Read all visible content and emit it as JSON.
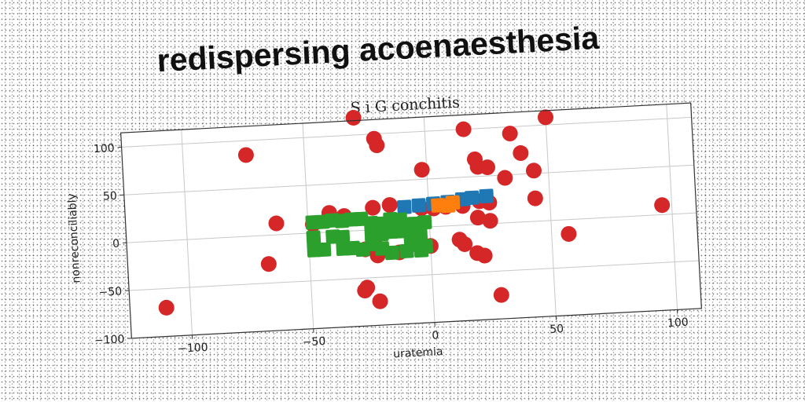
{
  "page_title": "redispersing acoenaesthesia",
  "chart_data": {
    "type": "scatter",
    "title": "S i G conchitis",
    "xlabel": "uratemia",
    "ylabel": "nonreconciliably",
    "xlim": [
      -125,
      110
    ],
    "ylim": [
      -100,
      115
    ],
    "xticks": [
      -100,
      -50,
      0,
      50,
      100
    ],
    "yticks": [
      -100,
      -50,
      0,
      50,
      100
    ],
    "xtick_labels": [
      "−100",
      "−50",
      "0",
      "50",
      "100"
    ],
    "ytick_labels": [
      "−100",
      "−50",
      "0",
      "50",
      "100"
    ],
    "grid": true,
    "series": [
      {
        "color": "#d62728",
        "points": [
          [
            -29,
            118
          ],
          [
            -21,
            95
          ],
          [
            -20,
            88
          ],
          [
            16,
            100
          ],
          [
            35,
            93
          ],
          [
            50,
            108
          ],
          [
            -74,
            85
          ],
          [
            39,
            72
          ],
          [
            20,
            68
          ],
          [
            21,
            60
          ],
          [
            25,
            59
          ],
          [
            -2,
            60
          ],
          [
            32,
            47
          ],
          [
            44,
            53
          ],
          [
            -110,
            -70
          ],
          [
            -63,
            12
          ],
          [
            -41,
            20
          ],
          [
            -35,
            16
          ],
          [
            -23,
            23
          ],
          [
            -16,
            25
          ],
          [
            -3,
            20
          ],
          [
            2,
            19
          ],
          [
            7,
            20
          ],
          [
            14,
            20
          ],
          [
            21,
            24
          ],
          [
            25,
            22
          ],
          [
            44,
            24
          ],
          [
            -48,
            9
          ],
          [
            20,
            7
          ],
          [
            25,
            3
          ],
          [
            -23,
            -15
          ],
          [
            -27,
            -20
          ],
          [
            -22,
            -27
          ],
          [
            0,
            -20
          ],
          [
            12,
            -15
          ],
          [
            14,
            -20
          ],
          [
            19,
            -30
          ],
          [
            22,
            -33
          ],
          [
            -67,
            -30
          ],
          [
            -27,
            -60
          ],
          [
            -28,
            -63
          ],
          [
            -22,
            -75
          ],
          [
            28,
            -75
          ],
          [
            57,
            -15
          ],
          [
            96,
            10
          ],
          [
            -13,
            -25
          ]
        ]
      },
      {
        "color": "#1f77b4",
        "points": [
          [
            -10,
            22
          ],
          [
            -4,
            23
          ],
          [
            2,
            24
          ],
          [
            8,
            25
          ],
          [
            14,
            27
          ],
          [
            18,
            28
          ],
          [
            24,
            29
          ]
        ]
      },
      {
        "color": "#ff7f0e",
        "points": [
          [
            4,
            22
          ],
          [
            8,
            21
          ],
          [
            10,
            24
          ]
        ]
      },
      {
        "color": "#2ca02c",
        "points": [
          [
            -48,
            11
          ],
          [
            -44,
            11
          ],
          [
            -40,
            12
          ],
          [
            -36,
            11
          ],
          [
            -32,
            12
          ],
          [
            -28,
            12
          ],
          [
            -48,
            -5
          ],
          [
            -48,
            -18
          ],
          [
            -44,
            -18
          ],
          [
            -40,
            -5
          ],
          [
            -36,
            -6
          ],
          [
            -36,
            -18
          ],
          [
            -32,
            -18
          ],
          [
            -28,
            -20
          ],
          [
            -24,
            7
          ],
          [
            -20,
            6
          ],
          [
            -16,
            10
          ],
          [
            -12,
            9
          ],
          [
            -24,
            -4
          ],
          [
            -20,
            -5
          ],
          [
            -16,
            -3
          ],
          [
            -12,
            -3
          ],
          [
            -24,
            -15
          ],
          [
            -20,
            -20
          ],
          [
            -16,
            -25
          ],
          [
            -10,
            4
          ],
          [
            -6,
            4
          ],
          [
            -2,
            5
          ],
          [
            -8,
            -10
          ],
          [
            -4,
            -8
          ],
          [
            -6,
            -18
          ],
          [
            -2,
            -20
          ],
          [
            -4,
            -24
          ],
          [
            -10,
            -24
          ]
        ]
      }
    ]
  }
}
